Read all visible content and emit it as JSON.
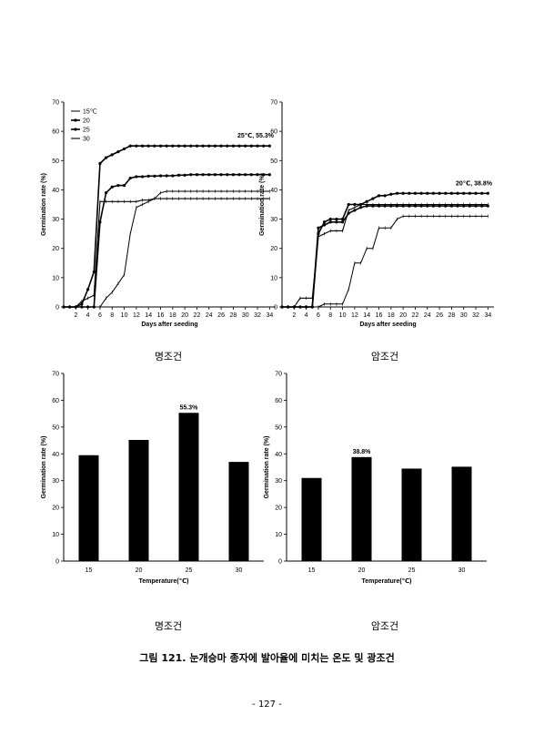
{
  "chart_data": [
    {
      "type": "line",
      "ylabel": "Germination rate (%)",
      "xlabel": "Days after seeding",
      "xlim": [
        0,
        35
      ],
      "ylim": [
        0,
        70
      ],
      "xticks": [
        2,
        4,
        6,
        8,
        10,
        12,
        14,
        16,
        18,
        20,
        22,
        24,
        26,
        28,
        30,
        32,
        34
      ],
      "yticks": [
        0,
        10,
        20,
        30,
        40,
        50,
        60,
        70
      ],
      "legend": [
        "15℃",
        "20",
        "25",
        "30"
      ],
      "legend_position": "top-left",
      "annotation": "25℃, 55.3%",
      "x": [
        0,
        1,
        2,
        3,
        4,
        5,
        6,
        7,
        8,
        9,
        10,
        11,
        12,
        13,
        14,
        15,
        16,
        17,
        18,
        19,
        20,
        21,
        22,
        23,
        24,
        25,
        26,
        27,
        28,
        29,
        30,
        31,
        32,
        33,
        34
      ],
      "series": [
        {
          "name": "15℃",
          "values": [
            0,
            0,
            0,
            0,
            0,
            0,
            0,
            3,
            5,
            8,
            11,
            25,
            34,
            35,
            36,
            37,
            39,
            39.5,
            39.5,
            39.5,
            39.5,
            39.5,
            39.5,
            39.5,
            39.5,
            39.5,
            39.5,
            39.5,
            39.5,
            39.5,
            39.5,
            39.5,
            39.5,
            39.5,
            39.5
          ]
        },
        {
          "name": "20",
          "values": [
            0,
            0,
            0,
            0,
            0,
            0,
            29,
            39,
            41,
            41.5,
            41.5,
            44,
            44.5,
            44.5,
            44.7,
            44.7,
            44.8,
            44.8,
            44.8,
            45,
            45,
            45.2,
            45.2,
            45.2,
            45.2,
            45.2,
            45.2,
            45.2,
            45.2,
            45.2,
            45.2,
            45.2,
            45.2,
            45.2,
            45.2
          ]
        },
        {
          "name": "25",
          "values": [
            0,
            0,
            0,
            1,
            6,
            12,
            49,
            51,
            52,
            53,
            54,
            55,
            55,
            55,
            55,
            55,
            55,
            55,
            55,
            55,
            55,
            55,
            55,
            55,
            55,
            55,
            55,
            55,
            55,
            55,
            55,
            55,
            55,
            55,
            55
          ]
        },
        {
          "name": "30",
          "values": [
            0,
            0,
            0,
            2,
            3,
            4,
            36,
            36,
            36,
            36,
            36,
            36,
            36,
            36.5,
            36.5,
            37,
            37,
            37,
            37,
            37,
            37,
            37,
            37,
            37,
            37,
            37,
            37,
            37,
            37,
            37,
            37,
            37,
            37,
            37,
            37
          ]
        }
      ]
    },
    {
      "type": "line",
      "ylabel": "Germination rate (%)",
      "xlabel": "Days after seeding",
      "xlim": [
        0,
        35
      ],
      "ylim": [
        0,
        70
      ],
      "xticks": [
        2,
        4,
        6,
        8,
        10,
        12,
        14,
        16,
        18,
        20,
        22,
        24,
        26,
        28,
        30,
        32,
        34
      ],
      "yticks": [
        0,
        10,
        20,
        30,
        40,
        50,
        60,
        70
      ],
      "annotation": "20℃, 38.8%",
      "x": [
        0,
        1,
        2,
        3,
        4,
        5,
        6,
        7,
        8,
        9,
        10,
        11,
        12,
        13,
        14,
        15,
        16,
        17,
        18,
        19,
        20,
        21,
        22,
        23,
        24,
        25,
        26,
        27,
        28,
        29,
        30,
        31,
        32,
        33,
        34
      ],
      "series": [
        {
          "name": "15℃",
          "values": [
            0,
            0,
            0,
            0,
            0,
            0,
            0,
            1,
            1,
            1,
            1,
            6,
            15,
            15,
            20,
            20,
            27,
            27,
            27,
            30,
            31,
            31,
            31,
            31,
            31,
            31,
            31,
            31,
            31,
            31,
            31,
            31,
            31,
            31,
            31
          ]
        },
        {
          "name": "20",
          "values": [
            0,
            0,
            0,
            0,
            0,
            0,
            25,
            29,
            30,
            30,
            30,
            35,
            35,
            35,
            36,
            37,
            38,
            38,
            38.5,
            38.8,
            38.8,
            38.8,
            38.8,
            38.8,
            38.8,
            38.8,
            38.8,
            38.8,
            38.8,
            38.8,
            38.8,
            38.8,
            38.8,
            38.8,
            38.8
          ]
        },
        {
          "name": "25",
          "values": [
            0,
            0,
            0,
            0,
            0,
            0,
            27,
            28,
            29,
            29,
            29,
            32,
            33,
            34,
            34.5,
            34.5,
            34.5,
            34.5,
            34.5,
            34.5,
            34.5,
            34.5,
            34.5,
            34.5,
            34.5,
            34.5,
            34.5,
            34.5,
            34.5,
            34.5,
            34.5,
            34.5,
            34.5,
            34.5,
            34.5
          ]
        },
        {
          "name": "30",
          "values": [
            0,
            0,
            0,
            3,
            3,
            3,
            24,
            25,
            26,
            26,
            26,
            33,
            34,
            35,
            35,
            35,
            35,
            35,
            35,
            35,
            35,
            35,
            35,
            35,
            35,
            35,
            35,
            35,
            35,
            35,
            35,
            35,
            35,
            35,
            35
          ]
        }
      ]
    },
    {
      "type": "bar",
      "ylabel": "Germination rate (%)",
      "xlabel": "Temperature(℃)",
      "ylim": [
        0,
        70
      ],
      "yticks": [
        0,
        10,
        20,
        30,
        40,
        50,
        60,
        70
      ],
      "categories": [
        "15",
        "20",
        "25",
        "30"
      ],
      "values": [
        39.5,
        45.2,
        55.3,
        37
      ],
      "annotation": "55.3%",
      "annotation_index": 2
    },
    {
      "type": "bar",
      "ylabel": "Germination rate (%)",
      "xlabel": "Temperature(℃)",
      "ylim": [
        0,
        70
      ],
      "yticks": [
        0,
        10,
        20,
        30,
        40,
        50,
        60,
        70
      ],
      "categories": [
        "15",
        "20",
        "25",
        "30"
      ],
      "values": [
        31,
        38.8,
        34.5,
        35.2
      ],
      "annotation": "38.8%",
      "annotation_index": 1
    }
  ],
  "captions": {
    "top_left": "명조건",
    "top_right": "암조건",
    "bottom_left": "명조건",
    "bottom_right": "암조건"
  },
  "figure_caption": "그림 121. 눈개승마 종자에 발아율에 미치는 온도 및 광조건",
  "page_number": "- 127 -"
}
